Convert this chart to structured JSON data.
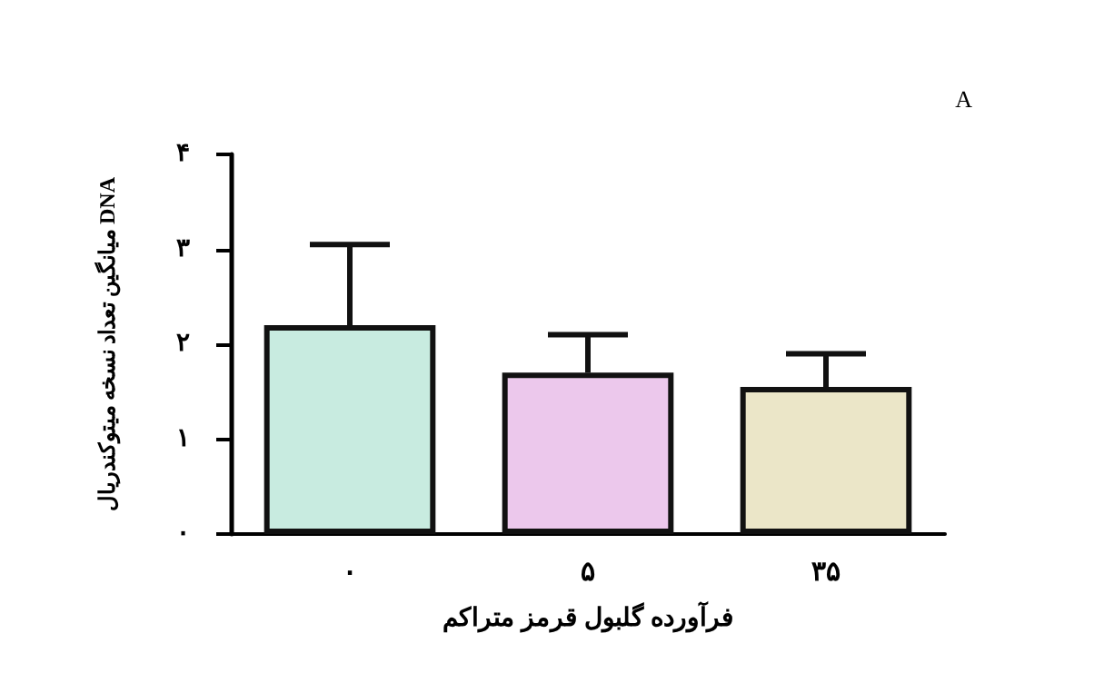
{
  "chart_data": {
    "type": "bar",
    "categories": [
      "۰",
      "۵",
      "۳۵"
    ],
    "values": [
      2.2,
      1.7,
      1.55
    ],
    "colors": [
      "#c8ebe0",
      "#ecc8ec",
      "#ebe6c8"
    ],
    "errors": [
      [
        2.2,
        3.05
      ],
      [
        1.7,
        2.1
      ],
      [
        1.55,
        1.9
      ]
    ],
    "ylim": [
      0,
      4
    ],
    "yticks": [
      {
        "value": 0,
        "label": "۰"
      },
      {
        "value": 1,
        "label": "۱"
      },
      {
        "value": 2,
        "label": "۲"
      },
      {
        "value": 3,
        "label": "۳"
      },
      {
        "value": 4,
        "label": "۴"
      }
    ],
    "xlabel": "فرآورده گلبول قرمز متراکم",
    "ylabel": "میانگین تعداد نسخه میتوکندریال DNA",
    "annotations": [
      "A"
    ],
    "grid": false
  }
}
